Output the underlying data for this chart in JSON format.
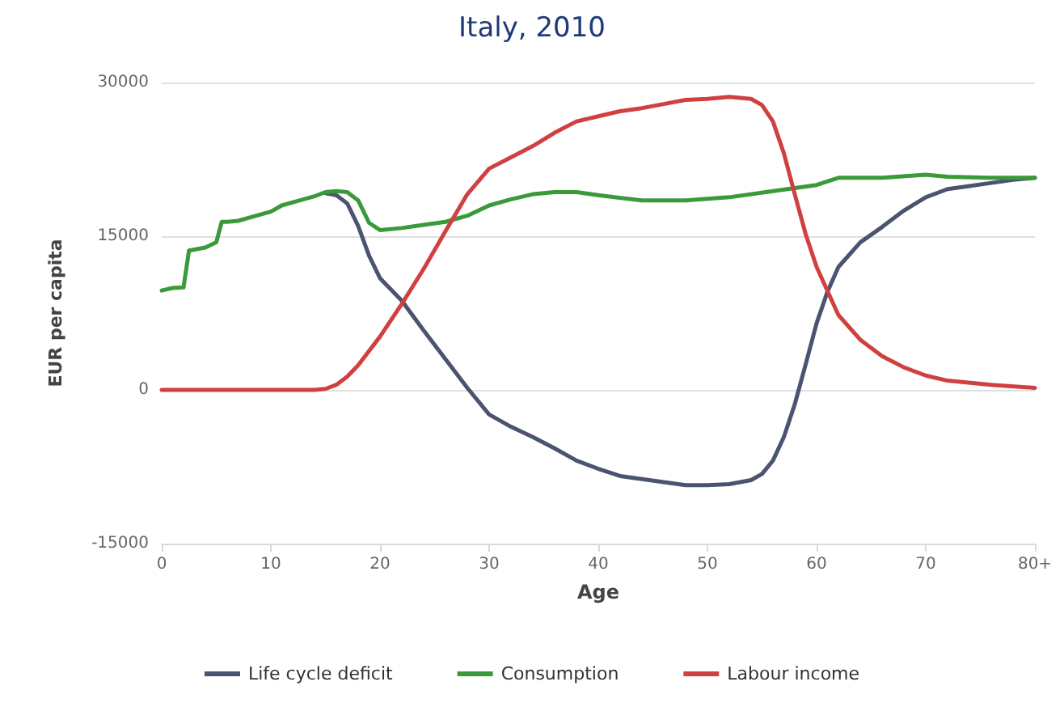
{
  "chart_data": {
    "type": "line",
    "title": "Italy, 2010",
    "xlabel": "Age",
    "ylabel": "EUR per capita",
    "xlim": [
      0,
      80
    ],
    "xticks": [
      0,
      10,
      20,
      30,
      40,
      50,
      60,
      70,
      {
        "value": 80,
        "label": "80+"
      }
    ],
    "ylim": [
      -15000,
      30000
    ],
    "yticks": [
      -15000,
      0,
      15000,
      30000
    ],
    "grid": "y",
    "legend": "bottom",
    "marker": "none",
    "line_style": "solid",
    "series": [
      {
        "name": "Life cycle deficit",
        "color": "#4a5470",
        "x": [
          15,
          16,
          17,
          18,
          19,
          20,
          22,
          24,
          26,
          28,
          30,
          32,
          34,
          36,
          38,
          40,
          42,
          44,
          46,
          48,
          50,
          52,
          54,
          55,
          56,
          57,
          58,
          59,
          60,
          61,
          62,
          64,
          66,
          68,
          70,
          72,
          74,
          76,
          78,
          80
        ],
        "values": [
          19200,
          19000,
          18200,
          16000,
          13100,
          10900,
          8700,
          5800,
          3000,
          200,
          -2400,
          -3600,
          -4600,
          -5700,
          -6900,
          -7700,
          -8400,
          -8700,
          -9000,
          -9300,
          -9300,
          -9200,
          -8800,
          -8200,
          -6900,
          -4600,
          -1400,
          2500,
          6500,
          9600,
          12000,
          14400,
          15900,
          17500,
          18800,
          19600,
          19900,
          20200,
          20500,
          20700
        ]
      },
      {
        "name": "Consumption",
        "color": "#3a9a3a",
        "x": [
          0,
          1,
          2,
          2.5,
          3,
          4,
          5,
          5.5,
          6,
          7,
          8,
          9,
          10,
          11,
          12,
          13,
          14,
          15,
          16,
          17,
          18,
          19,
          20,
          22,
          24,
          26,
          28,
          30,
          32,
          34,
          36,
          38,
          40,
          44,
          48,
          52,
          56,
          60,
          62,
          66,
          70,
          72,
          76,
          80
        ],
        "values": [
          9700,
          9950,
          10000,
          13600,
          13700,
          13900,
          14400,
          16400,
          16400,
          16500,
          16800,
          17100,
          17400,
          18000,
          18300,
          18600,
          18900,
          19300,
          19400,
          19300,
          18500,
          16300,
          15600,
          15800,
          16100,
          16400,
          17000,
          18000,
          18600,
          19100,
          19300,
          19300,
          19000,
          18500,
          18500,
          18800,
          19400,
          20000,
          20700,
          20700,
          21000,
          20800,
          20700,
          20700
        ]
      },
      {
        "name": "Labour income",
        "color": "#d04040",
        "x": [
          0,
          2,
          4,
          6,
          8,
          10,
          12,
          14,
          15,
          16,
          17,
          18,
          20,
          22,
          24,
          26,
          28,
          30,
          32,
          34,
          36,
          38,
          40,
          42,
          44,
          46,
          48,
          50,
          52,
          54,
          55,
          56,
          57,
          58,
          59,
          60,
          62,
          64,
          66,
          68,
          70,
          72,
          76,
          80
        ],
        "values": [
          0,
          0,
          0,
          0,
          0,
          0,
          0,
          0,
          100,
          500,
          1300,
          2400,
          5200,
          8400,
          11800,
          15500,
          19100,
          21600,
          22700,
          23800,
          25100,
          26200,
          26700,
          27200,
          27500,
          27900,
          28300,
          28400,
          28600,
          28400,
          27800,
          26200,
          23100,
          19100,
          15200,
          12000,
          7300,
          4900,
          3300,
          2200,
          1400,
          900,
          500,
          200
        ]
      }
    ]
  }
}
